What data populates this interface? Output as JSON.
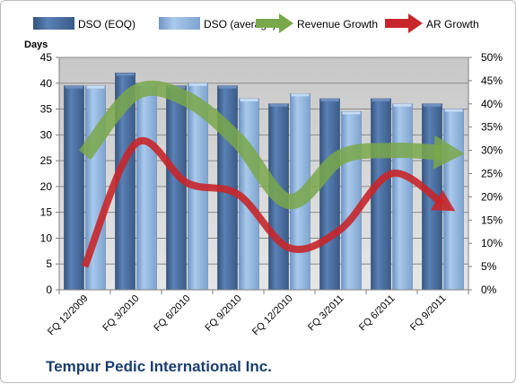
{
  "chart_data": {
    "type": "bar",
    "categories": [
      "FQ 12/2009",
      "FQ 3/2010",
      "FQ 6/2010",
      "FQ 9/2010",
      "FQ 12/2010",
      "FQ 3/2011",
      "FQ 6/2011",
      "FQ 9/2011"
    ],
    "series": [
      {
        "name": "DSO (EOQ)",
        "type": "bar",
        "axis": "left",
        "color": "#4a6fa0",
        "values": [
          39.5,
          42,
          39.5,
          39.5,
          36,
          37,
          37,
          36
        ]
      },
      {
        "name": "DSO (average)",
        "type": "bar",
        "axis": "left",
        "color": "#8fb4de",
        "values": [
          39.5,
          40,
          40,
          37,
          38,
          34.5,
          36,
          35
        ]
      },
      {
        "name": "Revenue Growth",
        "type": "line-arrow",
        "axis": "right",
        "color": "#79a84a",
        "values": [
          29,
          42.5,
          41,
          32,
          19,
          28.5,
          30,
          29.5
        ]
      },
      {
        "name": "AR Growth",
        "type": "line-arrow",
        "axis": "right",
        "color": "#c8262a",
        "values": [
          5,
          31.5,
          23,
          20.5,
          9,
          13,
          25,
          18.5
        ]
      }
    ],
    "ylabel": "Days",
    "ylim": [
      0,
      45
    ],
    "yticks": [
      "0",
      "5",
      "10",
      "15",
      "20",
      "25",
      "30",
      "35",
      "40",
      "45"
    ],
    "y2lim": [
      0,
      50
    ],
    "y2ticks": [
      "0%",
      "5%",
      "10%",
      "15%",
      "20%",
      "25%",
      "30%",
      "35%",
      "40%",
      "45%",
      "50%"
    ],
    "grid": true,
    "legend": "top",
    "footer_title": "Tempur Pedic International Inc."
  }
}
